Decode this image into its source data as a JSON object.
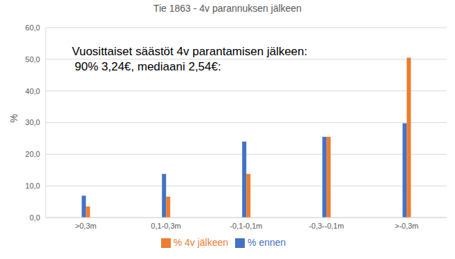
{
  "chart_data": {
    "type": "bar",
    "title": "Tie 1863 - 4v parannuksen jälkeen",
    "annotations": [
      "Vuosittaiset säästöt 4v parantamisen jälkeen:",
      "90% 3,24€, mediaani 2,54€:"
    ],
    "y_label": "%",
    "categories": [
      ">0,3m",
      "0,1-0,3m",
      "-0,1-0,1m",
      "-0,3--0,1m",
      ">-0,3m"
    ],
    "series": [
      {
        "name": "% ennen",
        "color": "#4472c4",
        "values": [
          6.9,
          13.8,
          24.0,
          25.5,
          29.8
        ]
      },
      {
        "name": "% 4v jälkeen",
        "color": "#ed7d31",
        "values": [
          3.5,
          6.6,
          13.8,
          25.5,
          50.5
        ]
      }
    ],
    "ylim": [
      0,
      60
    ],
    "yticks": [
      {
        "value": 0,
        "label": "0,0"
      },
      {
        "value": 10,
        "label": "10,0"
      },
      {
        "value": 20,
        "label": "20,0"
      },
      {
        "value": 30,
        "label": "30,0"
      },
      {
        "value": 40,
        "label": "40,0"
      },
      {
        "value": 50,
        "label": "50,0"
      },
      {
        "value": 60,
        "label": "60,0"
      }
    ],
    "grid": true,
    "legend": "bottom"
  }
}
